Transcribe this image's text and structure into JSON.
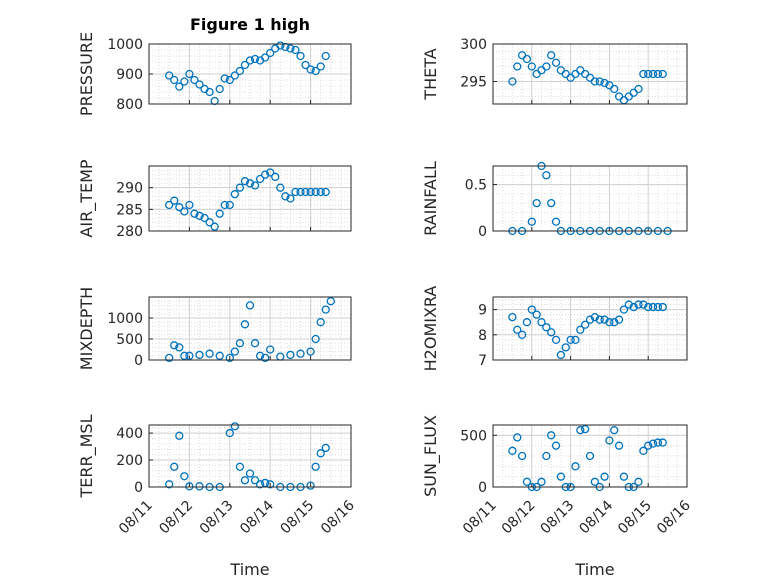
{
  "figure": {
    "title": "Figure 1 high",
    "xlabel": "Time",
    "date_ticks": [
      "08/11",
      "08/12",
      "08/13",
      "08/14",
      "08/15",
      "08/16"
    ],
    "marker_color": "#0072BD"
  },
  "chart_data": [
    {
      "type": "scatter",
      "ylabel": "PRESSURE",
      "xlim": [
        "08/11",
        "08/16"
      ],
      "ylim": [
        800,
        1000
      ],
      "yticks": [
        "800",
        "900",
        "1000"
      ],
      "grid": true,
      "series": [
        {
          "x": [
            "08/11 12:00",
            "08/11 15:00",
            "08/11 18:00",
            "08/11 21:00",
            "08/12 00:00",
            "08/12 03:00",
            "08/12 06:00",
            "08/12 09:00",
            "08/12 12:00",
            "08/12 15:00",
            "08/12 18:00",
            "08/12 21:00",
            "08/13 00:00",
            "08/13 03:00",
            "08/13 06:00",
            "08/13 09:00",
            "08/13 12:00",
            "08/13 15:00",
            "08/13 18:00",
            "08/13 21:00",
            "08/14 00:00",
            "08/14 03:00",
            "08/14 06:00",
            "08/14 09:00",
            "08/14 12:00",
            "08/14 15:00",
            "08/14 18:00",
            "08/14 21:00",
            "08/15 00:00",
            "08/15 03:00",
            "08/15 06:00",
            "08/15 09:00"
          ],
          "y": [
            895,
            880,
            858,
            875,
            900,
            880,
            865,
            850,
            840,
            810,
            850,
            885,
            880,
            895,
            910,
            930,
            945,
            950,
            945,
            955,
            970,
            985,
            995,
            990,
            985,
            980,
            960,
            930,
            915,
            910,
            925,
            960
          ]
        }
      ]
    },
    {
      "type": "scatter",
      "ylabel": "THETA",
      "xlim": [
        "08/11",
        "08/16"
      ],
      "ylim": [
        292,
        300
      ],
      "yticks": [
        "295",
        "300"
      ],
      "grid": true,
      "series": [
        {
          "x": [
            "08/11 12:00",
            "08/11 15:00",
            "08/11 18:00",
            "08/11 21:00",
            "08/12 00:00",
            "08/12 03:00",
            "08/12 06:00",
            "08/12 09:00",
            "08/12 12:00",
            "08/12 15:00",
            "08/12 18:00",
            "08/12 21:00",
            "08/13 00:00",
            "08/13 03:00",
            "08/13 06:00",
            "08/13 09:00",
            "08/13 12:00",
            "08/13 15:00",
            "08/13 18:00",
            "08/13 21:00",
            "08/14 00:00",
            "08/14 03:00",
            "08/14 06:00",
            "08/14 09:00",
            "08/14 12:00",
            "08/14 15:00",
            "08/14 18:00",
            "08/14 21:00",
            "08/15 00:00",
            "08/15 03:00",
            "08/15 06:00",
            "08/15 09:00"
          ],
          "y": [
            295,
            297,
            298.5,
            298,
            297,
            296,
            296.5,
            297,
            298.5,
            297.5,
            296.5,
            296,
            295.5,
            296,
            296.5,
            296,
            295.5,
            295,
            295,
            294.8,
            294.5,
            294,
            293,
            292.5,
            293,
            293.5,
            294,
            296,
            296,
            296,
            296,
            296
          ]
        }
      ]
    },
    {
      "type": "scatter",
      "ylabel": "AIR_TEMP",
      "xlim": [
        "08/11",
        "08/16"
      ],
      "ylim": [
        280,
        295
      ],
      "yticks": [
        "280",
        "285",
        "290"
      ],
      "grid": true,
      "series": [
        {
          "x": [
            "08/11 12:00",
            "08/11 15:00",
            "08/11 18:00",
            "08/11 21:00",
            "08/12 00:00",
            "08/12 03:00",
            "08/12 06:00",
            "08/12 09:00",
            "08/12 12:00",
            "08/12 15:00",
            "08/12 18:00",
            "08/12 21:00",
            "08/13 00:00",
            "08/13 03:00",
            "08/13 06:00",
            "08/13 09:00",
            "08/13 12:00",
            "08/13 15:00",
            "08/13 18:00",
            "08/13 21:00",
            "08/14 00:00",
            "08/14 03:00",
            "08/14 06:00",
            "08/14 09:00",
            "08/14 12:00",
            "08/14 15:00",
            "08/14 18:00",
            "08/14 21:00",
            "08/15 00:00",
            "08/15 03:00",
            "08/15 06:00",
            "08/15 09:00"
          ],
          "y": [
            286,
            287,
            285.5,
            284.5,
            286,
            284,
            283.5,
            283,
            282,
            281,
            284,
            286,
            286,
            288.5,
            290,
            291.5,
            291,
            290.5,
            292,
            293,
            293.5,
            292.5,
            290,
            288,
            287.5,
            289,
            289,
            289,
            289,
            289,
            289,
            289
          ]
        }
      ]
    },
    {
      "type": "scatter",
      "ylabel": "RAINFALL",
      "xlim": [
        "08/11",
        "08/16"
      ],
      "ylim": [
        0,
        0.7
      ],
      "yticks": [
        "0",
        "0.5"
      ],
      "grid": true,
      "series": [
        {
          "x": [
            "08/11 12:00",
            "08/11 18:00",
            "08/12 00:00",
            "08/12 03:00",
            "08/12 06:00",
            "08/12 09:00",
            "08/12 12:00",
            "08/12 15:00",
            "08/12 18:00",
            "08/13 00:00",
            "08/13 06:00",
            "08/13 12:00",
            "08/13 18:00",
            "08/14 00:00",
            "08/14 06:00",
            "08/14 12:00",
            "08/14 18:00",
            "08/15 00:00",
            "08/15 06:00",
            "08/15 12:00"
          ],
          "y": [
            0,
            0,
            0.1,
            0.3,
            0.7,
            0.6,
            0.3,
            0.1,
            0,
            0,
            0,
            0,
            0,
            0,
            0,
            0,
            0,
            0,
            0,
            0
          ]
        }
      ]
    },
    {
      "type": "scatter",
      "ylabel": "MIXDEPTH",
      "xlim": [
        "08/11",
        "08/16"
      ],
      "ylim": [
        0,
        1500
      ],
      "yticks": [
        "0",
        "500",
        "1000"
      ],
      "grid": true,
      "series": [
        {
          "x": [
            "08/11 12:00",
            "08/11 15:00",
            "08/11 18:00",
            "08/11 21:00",
            "08/12 00:00",
            "08/12 06:00",
            "08/12 12:00",
            "08/12 18:00",
            "08/13 00:00",
            "08/13 03:00",
            "08/13 06:00",
            "08/13 09:00",
            "08/13 12:00",
            "08/13 15:00",
            "08/13 18:00",
            "08/13 21:00",
            "08/14 00:00",
            "08/14 06:00",
            "08/14 12:00",
            "08/14 18:00",
            "08/15 00:00",
            "08/15 03:00",
            "08/15 06:00",
            "08/15 09:00",
            "08/15 12:00"
          ],
          "y": [
            50,
            350,
            300,
            100,
            100,
            120,
            150,
            100,
            50,
            200,
            400,
            850,
            1300,
            400,
            100,
            50,
            250,
            80,
            120,
            150,
            200,
            500,
            900,
            1200,
            1400
          ]
        }
      ]
    },
    {
      "type": "scatter",
      "ylabel": "H2OMIXRA",
      "xlim": [
        "08/11",
        "08/16"
      ],
      "ylim": [
        7,
        9.5
      ],
      "yticks": [
        "7",
        "8",
        "9"
      ],
      "grid": true,
      "series": [
        {
          "x": [
            "08/11 12:00",
            "08/11 15:00",
            "08/11 18:00",
            "08/11 21:00",
            "08/12 00:00",
            "08/12 03:00",
            "08/12 06:00",
            "08/12 09:00",
            "08/12 12:00",
            "08/12 15:00",
            "08/12 18:00",
            "08/12 21:00",
            "08/13 00:00",
            "08/13 03:00",
            "08/13 06:00",
            "08/13 09:00",
            "08/13 12:00",
            "08/13 15:00",
            "08/13 18:00",
            "08/13 21:00",
            "08/14 00:00",
            "08/14 03:00",
            "08/14 06:00",
            "08/14 09:00",
            "08/14 12:00",
            "08/14 15:00",
            "08/14 18:00",
            "08/14 21:00",
            "08/15 00:00",
            "08/15 03:00",
            "08/15 06:00",
            "08/15 09:00"
          ],
          "y": [
            8.7,
            8.2,
            8,
            8.5,
            9,
            8.8,
            8.5,
            8.3,
            8.1,
            7.8,
            7.2,
            7.5,
            7.8,
            7.8,
            8.2,
            8.4,
            8.6,
            8.7,
            8.6,
            8.6,
            8.5,
            8.5,
            8.6,
            9,
            9.2,
            9.1,
            9.2,
            9.2,
            9.1,
            9.1,
            9.1,
            9.1
          ]
        }
      ]
    },
    {
      "type": "scatter",
      "ylabel": "TERR_MSL",
      "xlim": [
        "08/11",
        "08/16"
      ],
      "ylim": [
        0,
        460
      ],
      "yticks": [
        "0",
        "200",
        "400"
      ],
      "grid": true,
      "series": [
        {
          "x": [
            "08/11 12:00",
            "08/11 15:00",
            "08/11 18:00",
            "08/11 21:00",
            "08/12 00:00",
            "08/12 06:00",
            "08/12 12:00",
            "08/12 18:00",
            "08/13 00:00",
            "08/13 03:00",
            "08/13 06:00",
            "08/13 09:00",
            "08/13 12:00",
            "08/13 15:00",
            "08/13 18:00",
            "08/13 21:00",
            "08/14 00:00",
            "08/14 06:00",
            "08/14 12:00",
            "08/14 18:00",
            "08/15 00:00",
            "08/15 03:00",
            "08/15 06:00",
            "08/15 09:00"
          ],
          "y": [
            20,
            150,
            380,
            80,
            5,
            5,
            0,
            0,
            400,
            450,
            150,
            50,
            100,
            50,
            20,
            30,
            20,
            0,
            0,
            0,
            10,
            150,
            250,
            290
          ]
        }
      ]
    },
    {
      "type": "scatter",
      "ylabel": "SUN_FLUX",
      "xlim": [
        "08/11",
        "08/16"
      ],
      "ylim": [
        0,
        600
      ],
      "yticks": [
        "0",
        "500"
      ],
      "grid": true,
      "series": [
        {
          "x": [
            "08/11 12:00",
            "08/11 15:00",
            "08/11 18:00",
            "08/11 21:00",
            "08/12 00:00",
            "08/12 03:00",
            "08/12 06:00",
            "08/12 09:00",
            "08/12 12:00",
            "08/12 15:00",
            "08/12 18:00",
            "08/12 21:00",
            "08/13 00:00",
            "08/13 03:00",
            "08/13 06:00",
            "08/13 09:00",
            "08/13 12:00",
            "08/13 15:00",
            "08/13 18:00",
            "08/13 21:00",
            "08/14 00:00",
            "08/14 03:00",
            "08/14 06:00",
            "08/14 09:00",
            "08/14 12:00",
            "08/14 15:00",
            "08/14 18:00",
            "08/14 21:00",
            "08/15 00:00",
            "08/15 03:00",
            "08/15 06:00",
            "08/15 09:00"
          ],
          "y": [
            350,
            480,
            300,
            50,
            0,
            0,
            50,
            300,
            500,
            400,
            100,
            0,
            0,
            200,
            550,
            560,
            300,
            50,
            0,
            100,
            450,
            550,
            400,
            100,
            0,
            0,
            50,
            350,
            400,
            420,
            430,
            430
          ]
        }
      ]
    }
  ]
}
